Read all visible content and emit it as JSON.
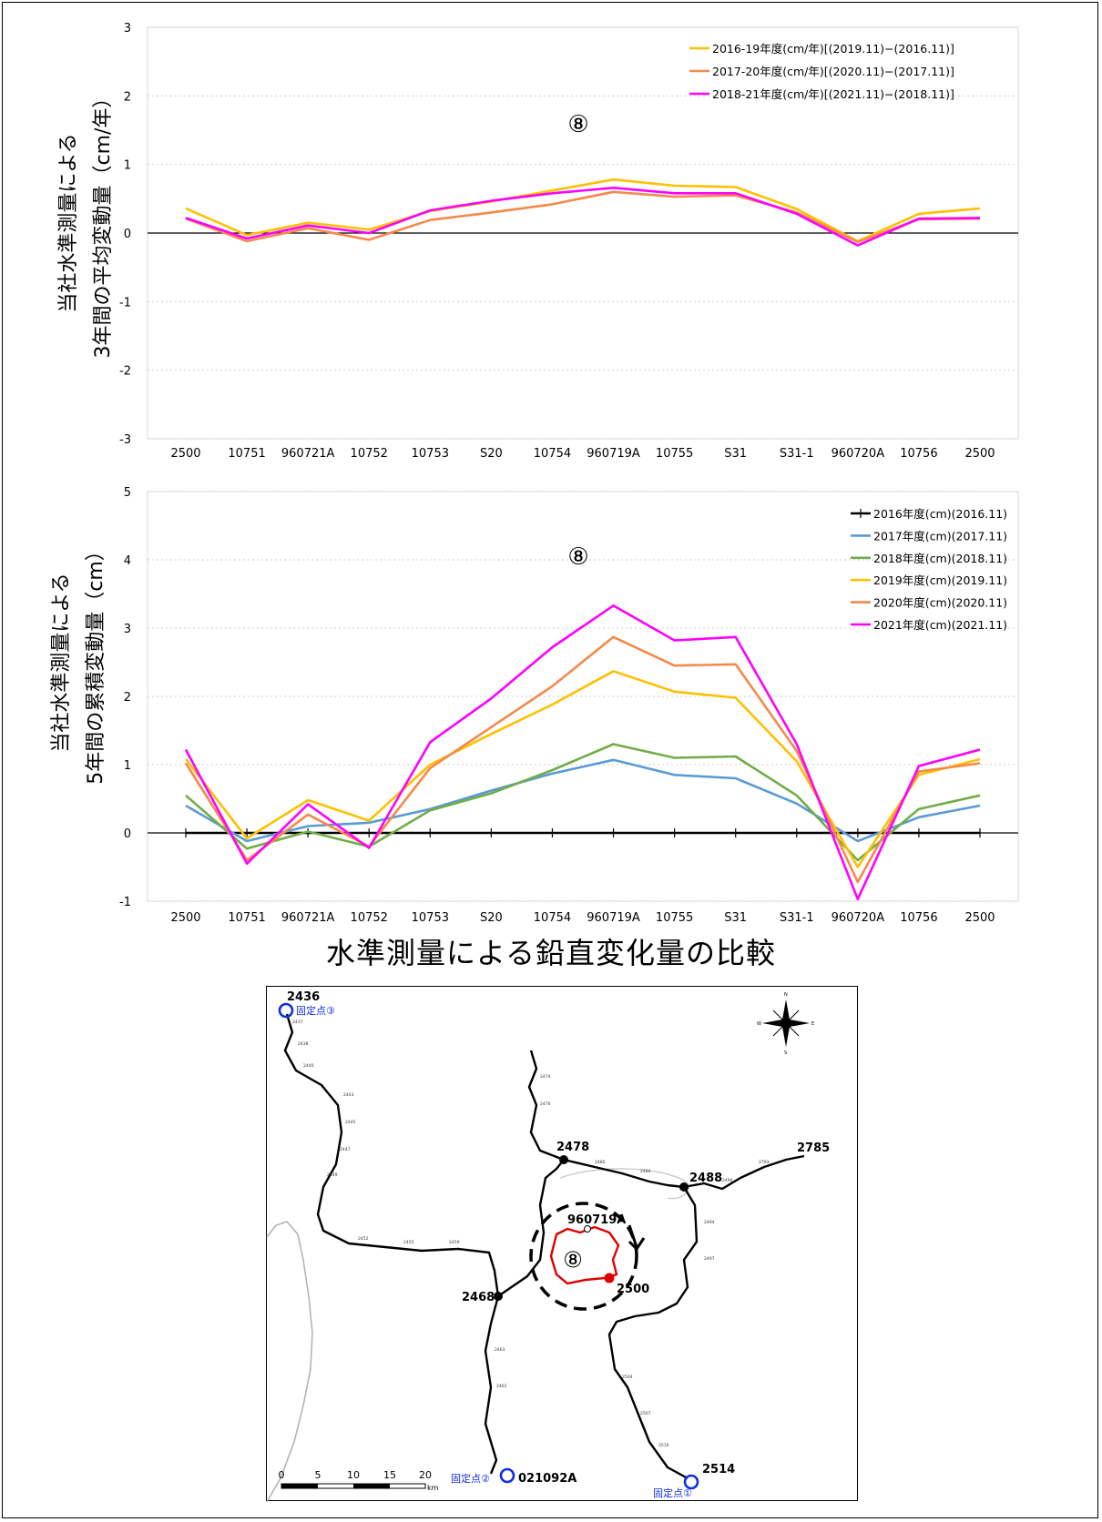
{
  "chart_data": [
    {
      "type": "line",
      "annotation": "⑧",
      "ylabel_lines": [
        "当社水準測量による",
        "3年間の平均変動量（cm/年）"
      ],
      "ylim": [
        -3,
        3
      ],
      "yticks": [
        -3,
        -2,
        -1,
        0,
        1,
        2,
        3
      ],
      "grid": true,
      "legend_position": "top-right",
      "categories": [
        "2500",
        "10751",
        "960721A",
        "10752",
        "10753",
        "S20",
        "10754",
        "960719A",
        "10755",
        "S31",
        "S31-1",
        "960720A",
        "10756",
        "2500"
      ],
      "series": [
        {
          "name": "2016-19年度(cm/年)[(2019.11)−(2016.11)]",
          "color": "#FFC000",
          "values": [
            0.36,
            -0.03,
            0.15,
            0.05,
            0.32,
            0.46,
            0.62,
            0.78,
            0.69,
            0.67,
            0.35,
            -0.12,
            0.28,
            0.36
          ]
        },
        {
          "name": "2017-20年度(cm/年)[(2020.11)−(2017.11)]",
          "color": "#F4894B",
          "values": [
            0.21,
            -0.12,
            0.07,
            -0.1,
            0.19,
            0.3,
            0.42,
            0.6,
            0.53,
            0.55,
            0.3,
            -0.13,
            0.2,
            0.21
          ]
        },
        {
          "name": "2018-21年度(cm/年)[(2021.11)−(2018.11)]",
          "color": "#FF00FF",
          "values": [
            0.22,
            -0.08,
            0.11,
            0.0,
            0.33,
            0.47,
            0.58,
            0.66,
            0.58,
            0.58,
            0.28,
            -0.18,
            0.21,
            0.22
          ]
        }
      ]
    },
    {
      "type": "line",
      "annotation": "⑧",
      "ylabel_lines": [
        "当社水準測量による",
        "5年間の累積変動量（cm）"
      ],
      "ylim": [
        -1,
        5
      ],
      "yticks": [
        -1,
        0,
        1,
        2,
        3,
        4,
        5
      ],
      "grid": true,
      "legend_position": "top-right",
      "categories": [
        "2500",
        "10751",
        "960721A",
        "10752",
        "10753",
        "S20",
        "10754",
        "960719A",
        "10755",
        "S31",
        "S31-1",
        "960720A",
        "10756",
        "2500"
      ],
      "series": [
        {
          "name": "2016年度(cm)(2016.11)",
          "color": "#000000",
          "values": [
            0,
            0,
            0,
            0,
            0,
            0,
            0,
            0,
            0,
            0,
            0,
            0,
            0,
            0
          ]
        },
        {
          "name": "2017年度(cm)(2017.11)",
          "color": "#5B9BD5",
          "values": [
            0.4,
            -0.12,
            0.1,
            0.15,
            0.35,
            0.62,
            0.87,
            1.07,
            0.85,
            0.8,
            0.43,
            -0.12,
            0.23,
            0.4
          ]
        },
        {
          "name": "2018年度(cm)(2018.11)",
          "color": "#70AD47",
          "values": [
            0.55,
            -0.23,
            0.02,
            -0.2,
            0.33,
            0.58,
            0.92,
            1.3,
            1.1,
            1.12,
            0.55,
            -0.4,
            0.35,
            0.55
          ]
        },
        {
          "name": "2019年度(cm)(2019.11)",
          "color": "#FFC000",
          "values": [
            1.08,
            -0.08,
            0.48,
            0.18,
            1.0,
            1.45,
            1.88,
            2.37,
            2.07,
            1.98,
            1.05,
            -0.5,
            0.85,
            1.08
          ]
        },
        {
          "name": "2020年度(cm)(2020.11)",
          "color": "#F4894B",
          "values": [
            1.02,
            -0.4,
            0.27,
            -0.2,
            0.95,
            1.55,
            2.15,
            2.87,
            2.45,
            2.47,
            1.2,
            -0.72,
            0.9,
            1.02
          ]
        },
        {
          "name": "2021年度(cm)(2021.11)",
          "color": "#FF00FF",
          "values": [
            1.22,
            -0.45,
            0.42,
            -0.22,
            1.33,
            1.97,
            2.72,
            3.33,
            2.82,
            2.87,
            1.3,
            -0.97,
            0.98,
            1.22
          ]
        }
      ]
    }
  ],
  "figure_caption": "水準測量による鉛直変化量の比較",
  "map": {
    "area_number": "⑧",
    "benchmarks": {
      "bm_2436": "2436",
      "bm_2478": "2478",
      "bm_2488": "2488",
      "bm_2785": "2785",
      "bm_960719A": "960719A",
      "bm_2468": "2468",
      "bm_2500": "2500",
      "bm_2514": "2514",
      "bm_021092A": "021092A"
    },
    "fixed_points": {
      "fixed_1": "固定点①",
      "fixed_2": "固定点②",
      "fixed_3": "固定点③"
    },
    "scale": {
      "ticks": [
        "0",
        "5",
        "10",
        "15",
        "20"
      ],
      "unit": "km"
    },
    "compass": {
      "north": "N",
      "east": "E",
      "south": "S",
      "west": "W"
    },
    "colors": {
      "loop": "#E00000",
      "fixed_point": "#1030E0",
      "route": "#000000"
    }
  }
}
